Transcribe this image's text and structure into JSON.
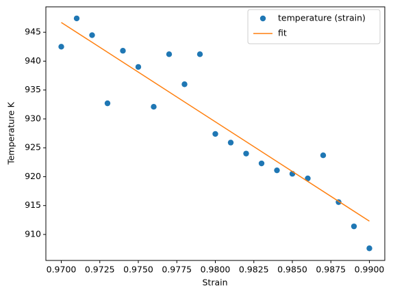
{
  "chart_data": {
    "type": "scatter",
    "x_label": "Strain",
    "y_label": "Temperature K",
    "xlim": [
      0.969,
      0.991
    ],
    "xticks": [
      {
        "value": 0.97,
        "label": "0.9700"
      },
      {
        "value": 0.9725,
        "label": "0.9725"
      },
      {
        "value": 0.975,
        "label": "0.9750"
      },
      {
        "value": 0.9775,
        "label": "0.9775"
      },
      {
        "value": 0.98,
        "label": "0.9800"
      },
      {
        "value": 0.9825,
        "label": "0.9825"
      },
      {
        "value": 0.985,
        "label": "0.9850"
      },
      {
        "value": 0.9875,
        "label": "0.9875"
      },
      {
        "value": 0.99,
        "label": "0.9900"
      }
    ],
    "ylim": [
      905.5,
      949.4
    ],
    "yticks": [
      910,
      915,
      920,
      925,
      930,
      935,
      940,
      945
    ],
    "legend": "upper right",
    "series": [
      {
        "name": "temperature (strain)",
        "type": "scatter",
        "color": "#1f77b4",
        "x": [
          0.97,
          0.971,
          0.972,
          0.973,
          0.974,
          0.975,
          0.976,
          0.977,
          0.978,
          0.979,
          0.98,
          0.981,
          0.982,
          0.983,
          0.984,
          0.985,
          0.986,
          0.987,
          0.988,
          0.989,
          0.99
        ],
        "values": [
          942.5,
          947.4,
          944.5,
          932.7,
          941.8,
          939.0,
          932.1,
          941.2,
          936.0,
          941.2,
          927.4,
          925.9,
          924.0,
          922.3,
          921.1,
          920.5,
          919.7,
          923.7,
          915.6,
          911.4,
          907.6
        ]
      },
      {
        "name": "fit",
        "type": "line",
        "color": "#ff7f0e",
        "x": [
          0.97,
          0.99
        ],
        "values": [
          946.7,
          912.3
        ]
      }
    ]
  }
}
